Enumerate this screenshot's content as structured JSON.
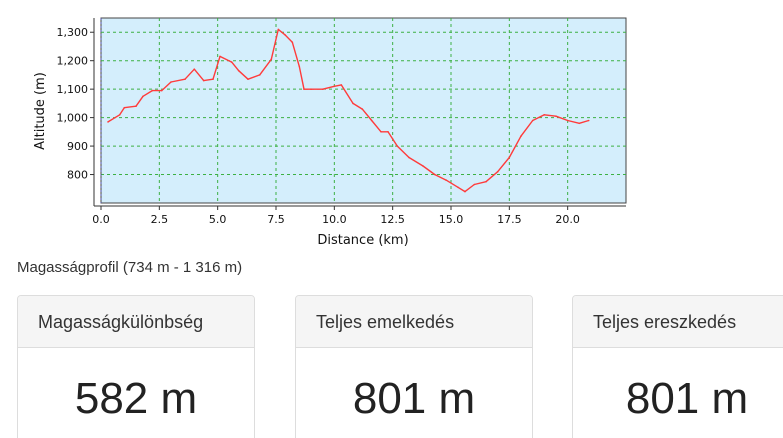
{
  "chart_data": {
    "type": "line",
    "title": "",
    "xlabel": "Distance (km)",
    "ylabel": "Altitude (m)",
    "xlim": [
      0,
      22.5
    ],
    "ylim": [
      700,
      1350
    ],
    "x_ticks": [
      "0.0",
      "2.5",
      "5.0",
      "7.5",
      "10.0",
      "12.5",
      "15.0",
      "17.5",
      "20.0"
    ],
    "x_tick_values": [
      0,
      2.5,
      5,
      7.5,
      10,
      12.5,
      15,
      17.5,
      20
    ],
    "y_ticks": [
      "800",
      "900",
      "1,000",
      "1,100",
      "1,200",
      "1,300"
    ],
    "y_tick_values": [
      800,
      900,
      1000,
      1100,
      1200,
      1300
    ],
    "grid": true,
    "colors": {
      "plot_bg": "#d4eefc",
      "line": "#ff3b3b",
      "grid": "#3cb043"
    },
    "series": [
      {
        "x": [
          0.3,
          0.8,
          1.0,
          1.5,
          1.8,
          2.2,
          2.6,
          3.0,
          3.6,
          4.0,
          4.4,
          4.8,
          5.1,
          5.6,
          5.9,
          6.3,
          6.8,
          7.3,
          7.6,
          7.9,
          8.2,
          8.5,
          8.7,
          9.0,
          9.5,
          10.0,
          10.3,
          10.8,
          11.2,
          11.6,
          12.0,
          12.3,
          12.7,
          13.2,
          13.8,
          14.3,
          14.8,
          15.3,
          15.6,
          16.0,
          16.5,
          17.0,
          17.5,
          18.0,
          18.5,
          19.0,
          19.5,
          20.0,
          20.5,
          20.9
        ],
        "y": [
          985,
          1010,
          1035,
          1040,
          1075,
          1095,
          1095,
          1125,
          1135,
          1170,
          1130,
          1135,
          1215,
          1195,
          1165,
          1135,
          1150,
          1205,
          1310,
          1290,
          1265,
          1180,
          1100,
          1100,
          1100,
          1110,
          1115,
          1050,
          1030,
          990,
          950,
          950,
          900,
          860,
          830,
          800,
          780,
          755,
          740,
          765,
          775,
          810,
          860,
          935,
          990,
          1010,
          1005,
          990,
          980,
          990
        ]
      }
    ]
  },
  "caption": "Magasságprofil (734 m - 1 316 m)",
  "stats": [
    {
      "label": "Magasságkülönbség",
      "value": "582 m"
    },
    {
      "label": "Teljes emelkedés",
      "value": "801 m"
    },
    {
      "label": "Teljes ereszkedés",
      "value": "801 m"
    }
  ]
}
